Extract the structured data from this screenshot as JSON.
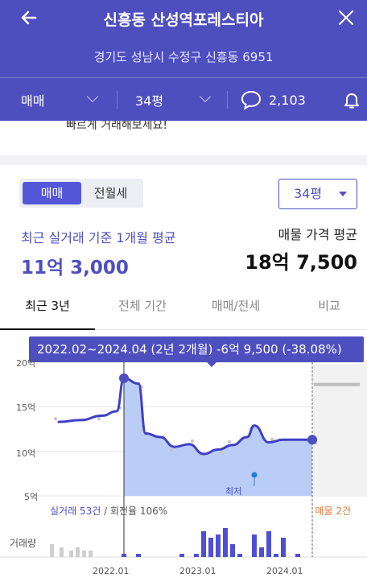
{
  "header": {
    "title": "신흥동 산성역포레스티아",
    "address": "경기도 성남시 수정구 신흥동 6951",
    "trade_type": "매매",
    "size": "34평",
    "comment_count": "2,103"
  },
  "cut_text": "빠르게 거래해보세요!",
  "toggle": {
    "sale": "매매",
    "rent": "전월세"
  },
  "size_select": "34평",
  "summary": {
    "avg_label": "최근 실거래 기준 1개월 평균",
    "avg_value": "11억 3,000",
    "ask_label": "매물 가격 평균",
    "ask_value": "18억 7,500"
  },
  "tabs": [
    "최근 3년",
    "전체 기간",
    "매매/전세",
    "비교"
  ],
  "tooltip": "2022.02~2024.04 (2년 2개월)  -6억 9,500 (-38.08%)",
  "chart_labels": {
    "y_20": "20억",
    "y_15": "15억",
    "y_10": "10억",
    "y_5": "5억",
    "min_label": "최저",
    "stat_count": "실거래 53건",
    "stat_turnover": " / 회전율 106%",
    "listing_count": "매물 2건",
    "volume_label": "거래량",
    "x_ticks": [
      "2022.01",
      "2023.01",
      "2024.01"
    ]
  },
  "colors": {
    "brand": "#4d4fbf",
    "fill": "#b9cdf7",
    "listing": "#e0793a"
  },
  "chart_data": {
    "type": "line",
    "unit": "억",
    "ylim": [
      5,
      20
    ],
    "y_ticks": [
      5,
      10,
      15,
      20
    ],
    "x_ticks": [
      "2022.01",
      "2023.01",
      "2024.01"
    ],
    "series": [
      {
        "values": [
          {
            "x": "2021.05",
            "y": 13.3
          },
          {
            "x": "2021.08",
            "y": 13.5
          },
          {
            "x": "2021.11",
            "y": 14.0
          },
          {
            "x": "2022.01",
            "y": 14.5
          },
          {
            "x": "2022.02",
            "y": 18.2
          },
          {
            "x": "2022.04",
            "y": 17.6
          },
          {
            "x": "2022.05",
            "y": 12.0
          },
          {
            "x": "2022.07",
            "y": 11.6
          },
          {
            "x": "2022.09",
            "y": 10.5
          },
          {
            "x": "2022.11",
            "y": 10.8
          },
          {
            "x": "2023.01",
            "y": 9.7
          },
          {
            "x": "2023.03",
            "y": 10.2
          },
          {
            "x": "2023.05",
            "y": 10.7
          },
          {
            "x": "2023.07",
            "y": 11.6
          },
          {
            "x": "2023.08",
            "y": 12.9
          },
          {
            "x": "2023.10",
            "y": 11.0
          },
          {
            "x": "2023.12",
            "y": 11.3
          },
          {
            "x": "2024.04",
            "y": 11.3
          }
        ]
      }
    ],
    "volume": [
      {
        "x": "2022.02",
        "v": 1
      },
      {
        "x": "2022.04",
        "v": 1
      },
      {
        "x": "2022.10",
        "v": 1
      },
      {
        "x": "2022.12",
        "v": 1
      },
      {
        "x": "2023.01",
        "v": 8
      },
      {
        "x": "2023.02",
        "v": 6
      },
      {
        "x": "2023.03",
        "v": 7
      },
      {
        "x": "2023.04",
        "v": 9
      },
      {
        "x": "2023.05",
        "v": 4
      },
      {
        "x": "2023.06",
        "v": 1
      },
      {
        "x": "2023.08",
        "v": 7
      },
      {
        "x": "2023.09",
        "v": 3
      },
      {
        "x": "2023.10",
        "v": 8
      },
      {
        "x": "2023.11",
        "v": 1
      },
      {
        "x": "2023.12",
        "v": 6
      },
      {
        "x": "2024.02",
        "v": 1
      }
    ],
    "minimum": {
      "x": "2023.01",
      "y": 9.7
    }
  }
}
